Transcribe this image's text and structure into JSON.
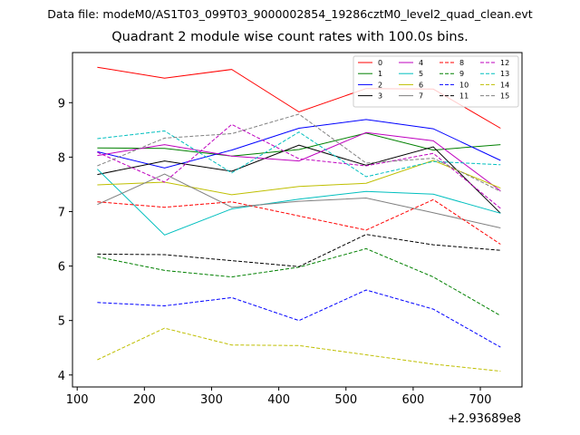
{
  "header": {
    "suptitle": "Data file: modeM0/AS1T03_099T03_9000002854_19286cztM0_level2_quad_clean.evt",
    "title": "Quadrant 2 module wise count rates with 100.0s bins."
  },
  "chart_data": {
    "type": "line",
    "title": "Quadrant 2 module wise count rates with 100.0s bins.",
    "xlabel": "",
    "ylabel": "",
    "x_offset_label": "+2.93689e8",
    "x": [
      130,
      230,
      330,
      430,
      530,
      630,
      730
    ],
    "xlim": [
      93,
      762
    ],
    "ylim": [
      3.78,
      9.92
    ],
    "xticks": [
      100,
      200,
      300,
      400,
      500,
      600,
      700
    ],
    "yticks": [
      4,
      5,
      6,
      7,
      8,
      9
    ],
    "grid": false,
    "legend": {
      "placement": "top-right",
      "columns": 4
    },
    "series": [
      {
        "name": "0",
        "color": "#ff0000",
        "dash": "solid",
        "values": [
          9.65,
          9.45,
          9.61,
          8.83,
          9.26,
          9.25,
          8.53
        ]
      },
      {
        "name": "1",
        "color": "#008000",
        "dash": "solid",
        "values": [
          8.17,
          8.16,
          8.02,
          8.14,
          8.44,
          8.13,
          8.23
        ]
      },
      {
        "name": "2",
        "color": "#0000ff",
        "dash": "solid",
        "values": [
          8.1,
          7.8,
          8.13,
          8.53,
          8.69,
          8.52,
          7.94
        ]
      },
      {
        "name": "3",
        "color": "#000000",
        "dash": "solid",
        "values": [
          7.68,
          7.93,
          7.74,
          8.22,
          7.85,
          8.19,
          6.97
        ]
      },
      {
        "name": "4",
        "color": "#bf00bf",
        "dash": "solid",
        "values": [
          8.03,
          8.23,
          8.02,
          7.93,
          8.45,
          8.3,
          7.38
        ]
      },
      {
        "name": "5",
        "color": "#00bfbf",
        "dash": "solid",
        "values": [
          7.78,
          6.57,
          7.05,
          7.23,
          7.37,
          7.32,
          6.97
        ]
      },
      {
        "name": "6",
        "color": "#bfbf00",
        "dash": "solid",
        "values": [
          7.49,
          7.54,
          7.31,
          7.46,
          7.52,
          7.94,
          7.43
        ]
      },
      {
        "name": "7",
        "color": "#808080",
        "dash": "solid",
        "values": [
          7.13,
          7.69,
          7.08,
          7.19,
          7.25,
          6.98,
          6.7
        ]
      },
      {
        "name": "8",
        "color": "#ff0000",
        "dash": "dashed",
        "values": [
          7.18,
          7.08,
          7.18,
          6.92,
          6.66,
          7.22,
          6.4
        ]
      },
      {
        "name": "9",
        "color": "#008000",
        "dash": "dashed",
        "values": [
          6.17,
          5.92,
          5.8,
          5.98,
          6.32,
          5.8,
          5.09
        ]
      },
      {
        "name": "10",
        "color": "#0000ff",
        "dash": "dashed",
        "values": [
          5.33,
          5.27,
          5.42,
          5.0,
          5.56,
          5.21,
          4.51
        ]
      },
      {
        "name": "11",
        "color": "#000000",
        "dash": "dashed",
        "values": [
          6.22,
          6.21,
          6.1,
          5.99,
          6.58,
          6.39,
          6.29
        ]
      },
      {
        "name": "12",
        "color": "#bf00bf",
        "dash": "dashed",
        "values": [
          8.09,
          7.54,
          8.6,
          7.97,
          7.84,
          8.07,
          7.06
        ]
      },
      {
        "name": "13",
        "color": "#00bfbf",
        "dash": "dashed",
        "values": [
          8.34,
          8.48,
          7.71,
          8.46,
          7.64,
          7.92,
          7.86
        ]
      },
      {
        "name": "14",
        "color": "#bfbf00",
        "dash": "dashed",
        "values": [
          4.28,
          4.86,
          4.55,
          4.54,
          4.37,
          4.2,
          4.07
        ]
      },
      {
        "name": "15",
        "color": "#808080",
        "dash": "dashed",
        "values": [
          7.84,
          8.35,
          8.43,
          8.79,
          7.89,
          7.98,
          7.37
        ]
      }
    ]
  }
}
